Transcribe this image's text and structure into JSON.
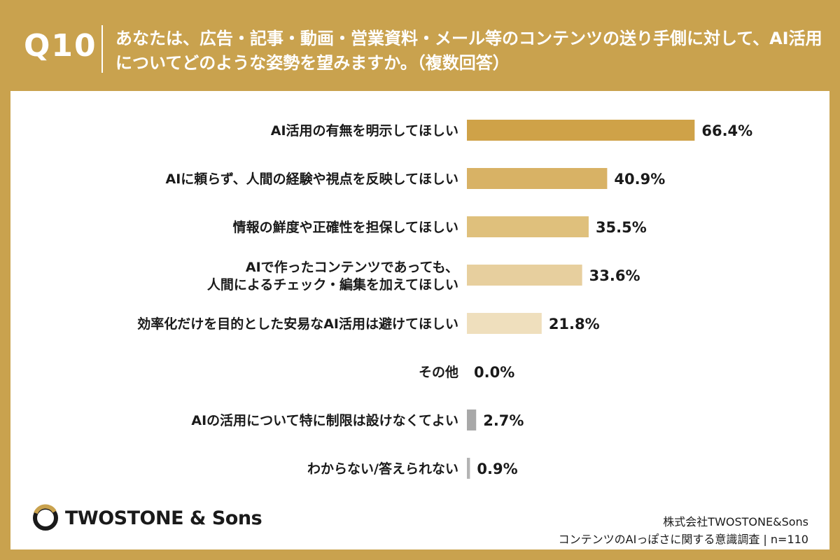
{
  "question": {
    "label": "Q10",
    "text": "あなたは、広告・記事・動画・営業資料・メール等のコンテンツの送り手側に対して、AI活用についてどのような姿勢を望みますか。（複数回答）"
  },
  "chart_data": {
    "type": "bar",
    "orientation": "horizontal",
    "categories": [
      [
        "AI活用の有無を明示してほしい"
      ],
      [
        "AIに頼らず、人間の経験や視点を反映してほしい"
      ],
      [
        "情報の鮮度や正確性を担保してほしい"
      ],
      [
        "AIで作ったコンテンツであっても、",
        "人間によるチェック・編集を加えてほしい"
      ],
      [
        "効率化だけを目的とした安易なAI活用は避けてほしい"
      ],
      [
        "その他"
      ],
      [
        "AIの活用について特に制限は設けなくてよい"
      ],
      [
        "わからない/答えられない"
      ]
    ],
    "values": [
      66.4,
      40.9,
      35.5,
      33.6,
      21.8,
      0.0,
      2.7,
      0.9
    ],
    "value_labels": [
      "66.4%",
      "40.9%",
      "35.5%",
      "33.6%",
      "21.8%",
      "0.0%",
      "2.7%",
      "0.9%"
    ],
    "colors": [
      "#cfa248",
      "#d8b265",
      "#dfc07c",
      "#e7cf9e",
      "#efdfbd",
      "#b9b9b9",
      "#a8a8a8",
      "#b4b4b4"
    ],
    "xlim": [
      0,
      100
    ],
    "grid": false
  },
  "footer": {
    "company": "株式会社TWOSTONE&Sons",
    "survey": "コンテンツのAIっぽさに関する意識調査 | n=110"
  },
  "logo": {
    "text": "TWOSTONE & Sons"
  }
}
